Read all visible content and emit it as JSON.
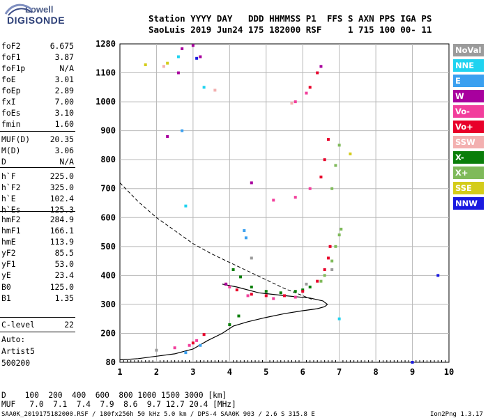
{
  "logo": {
    "line1": "Lowell",
    "line2": "DIGISONDE"
  },
  "header": {
    "line1": "Station YYYY DAY   DDD HHMMSS P1  FFS S AXN PPS IGA PS",
    "line2": "SaoLuis 2019 Jun24 175 182000 RSF     1 715 100 00- 11"
  },
  "params": [
    {
      "name": "foF2",
      "value": "6.675"
    },
    {
      "name": "foF1",
      "value": "3.87"
    },
    {
      "name": "foF1p",
      "value": "N/A"
    },
    {
      "name": "foE",
      "value": "3.01"
    },
    {
      "name": "foEp",
      "value": "2.89"
    },
    {
      "name": "fxI",
      "value": "7.00"
    },
    {
      "name": "foEs",
      "value": "3.10"
    },
    {
      "name": "fmin",
      "value": "1.60"
    },
    {
      "name": "MUF(D)",
      "value": "20.35"
    },
    {
      "name": "M(D)",
      "value": "3.06"
    },
    {
      "name": "D",
      "value": "N/A"
    },
    {
      "name": "h`F",
      "value": "225.0"
    },
    {
      "name": "h`F2",
      "value": "325.0"
    },
    {
      "name": "h`E",
      "value": "102.4"
    },
    {
      "name": "h`Es",
      "value": "125.3"
    },
    {
      "name": "hmF2",
      "value": "284.9"
    },
    {
      "name": "hmF1",
      "value": "166.1"
    },
    {
      "name": "hmE",
      "value": "113.9"
    },
    {
      "name": "yF2",
      "value": "85.5"
    },
    {
      "name": "yF1",
      "value": "53.0"
    },
    {
      "name": "yE",
      "value": "23.4"
    },
    {
      "name": "B0",
      "value": "125.0"
    },
    {
      "name": "B1",
      "value": "1.35"
    },
    {
      "name": "C-level",
      "value": "22"
    }
  ],
  "autoscale": {
    "line1": "Auto:",
    "line2": "Artist5",
    "line3": "500200"
  },
  "legend": [
    {
      "label": "NoVal",
      "color": "#9b9b9b"
    },
    {
      "label": "NNE",
      "color": "#1fd3f0"
    },
    {
      "label": "E",
      "color": "#3aa0f0"
    },
    {
      "label": "W",
      "color": "#a8009e"
    },
    {
      "label": "Vo-",
      "color": "#f23e9c"
    },
    {
      "label": "Vo+",
      "color": "#e8002a"
    },
    {
      "label": "SSW",
      "color": "#f3b0b0"
    },
    {
      "label": "X-",
      "color": "#0a7e0a"
    },
    {
      "label": "X+",
      "color": "#7fba5a"
    },
    {
      "label": "SSE",
      "color": "#d4cc1a"
    },
    {
      "label": "NNW",
      "color": "#1a1ae0"
    }
  ],
  "footer": {
    "d_row": "D    100  200  400  600  800 1000 1500 3000 [km]",
    "muf_row": "MUF   7.0  7.1  7.4  7.9  8.6  9.7 12.7 20.4 [MHz]",
    "file_line": "SAA0K_2019175182000.RSF / 180fx256h 50 kHz 5.0 km / DPS-4 SAA0K 903 / 2.6 S 315.8 E",
    "version": "Ion2Png 1.3.17"
  },
  "chart_data": {
    "type": "scatter",
    "title": "",
    "xlabel": "",
    "ylabel": "",
    "x_ticks": [
      "1",
      "2",
      "3",
      "4",
      "5",
      "6",
      "7",
      "8",
      "9",
      "10"
    ],
    "y_ticks": [
      "80",
      "200",
      "300",
      "400",
      "500",
      "600",
      "700",
      "800",
      "900",
      "1000",
      "1100",
      "1280"
    ],
    "xlim": [
      1,
      10
    ],
    "ylim": [
      80,
      1280
    ],
    "grid": true,
    "y_mapping": "piecewise-linear: tick labels equally spaced",
    "series": [
      {
        "name": "X-",
        "color": "#0a7e0a",
        "points": [
          [
            4.1,
            420
          ],
          [
            4.3,
            395
          ],
          [
            4.6,
            360
          ],
          [
            5.0,
            345
          ],
          [
            5.4,
            340
          ],
          [
            5.8,
            345
          ],
          [
            6.0,
            350
          ],
          [
            6.2,
            360
          ],
          [
            4.25,
            260
          ],
          [
            4.0,
            230
          ]
        ]
      },
      {
        "name": "X+",
        "color": "#7fba5a",
        "points": [
          [
            6.6,
            400
          ],
          [
            6.8,
            450
          ],
          [
            6.9,
            500
          ],
          [
            7.0,
            540
          ],
          [
            7.05,
            560
          ],
          [
            6.5,
            380
          ],
          [
            6.8,
            700
          ],
          [
            7.0,
            850
          ],
          [
            6.9,
            780
          ]
        ]
      },
      {
        "name": "Vo+",
        "color": "#e8002a",
        "points": [
          [
            3.9,
            370
          ],
          [
            4.2,
            350
          ],
          [
            4.6,
            335
          ],
          [
            5.0,
            330
          ],
          [
            5.5,
            330
          ],
          [
            6.0,
            345
          ],
          [
            6.4,
            380
          ],
          [
            6.6,
            420
          ],
          [
            6.7,
            460
          ],
          [
            6.75,
            500
          ],
          [
            6.5,
            740
          ],
          [
            6.6,
            800
          ],
          [
            6.7,
            870
          ],
          [
            6.2,
            1050
          ],
          [
            6.4,
            1100
          ],
          [
            3.3,
            195
          ],
          [
            3.0,
            160
          ]
        ]
      },
      {
        "name": "Vo-",
        "color": "#f23e9c",
        "points": [
          [
            4.0,
            360
          ],
          [
            4.5,
            330
          ],
          [
            5.2,
            320
          ],
          [
            5.8,
            325
          ],
          [
            3.1,
            170
          ],
          [
            2.9,
            150
          ],
          [
            2.5,
            140
          ],
          [
            5.2,
            660
          ],
          [
            5.8,
            670
          ],
          [
            6.2,
            700
          ],
          [
            5.8,
            1000
          ],
          [
            6.1,
            1030
          ]
        ]
      },
      {
        "name": "W",
        "color": "#a8009e",
        "points": [
          [
            2.7,
            1250
          ],
          [
            3.0,
            1270
          ],
          [
            3.2,
            1200
          ],
          [
            2.6,
            1100
          ],
          [
            2.3,
            880
          ],
          [
            4.6,
            720
          ],
          [
            6.5,
            1140
          ],
          [
            3.9,
            370
          ]
        ]
      },
      {
        "name": "E",
        "color": "#3aa0f0",
        "points": [
          [
            4.4,
            555
          ],
          [
            4.45,
            530
          ],
          [
            2.8,
            120
          ],
          [
            3.2,
            150
          ],
          [
            2.7,
            900
          ]
        ]
      },
      {
        "name": "NNE",
        "color": "#1fd3f0",
        "points": [
          [
            2.6,
            1200
          ],
          [
            3.3,
            1050
          ],
          [
            2.8,
            640
          ],
          [
            7.0,
            250
          ]
        ]
      },
      {
        "name": "NoVal",
        "color": "#9b9b9b",
        "points": [
          [
            4.6,
            460
          ],
          [
            6.1,
            370
          ],
          [
            2.0,
            130
          ],
          [
            6.8,
            420
          ]
        ]
      },
      {
        "name": "SSW",
        "color": "#f3b0b0",
        "points": [
          [
            3.6,
            1040
          ],
          [
            5.7,
            995
          ],
          [
            2.2,
            1140
          ]
        ]
      },
      {
        "name": "SSE",
        "color": "#d4cc1a",
        "points": [
          [
            1.7,
            1150
          ],
          [
            7.3,
            820
          ],
          [
            2.3,
            1160
          ]
        ]
      },
      {
        "name": "NNW",
        "color": "#1a1ae0",
        "points": [
          [
            9.0,
            80
          ],
          [
            9.7,
            400
          ],
          [
            3.1,
            1190
          ]
        ]
      }
    ],
    "profile_curve": [
      [
        1.0,
        90
      ],
      [
        1.5,
        95
      ],
      [
        2.0,
        105
      ],
      [
        2.5,
        115
      ],
      [
        3.0,
        135
      ],
      [
        3.4,
        170
      ],
      [
        3.8,
        200
      ],
      [
        4.1,
        225
      ],
      [
        4.5,
        240
      ],
      [
        5.0,
        255
      ],
      [
        5.5,
        268
      ],
      [
        6.0,
        278
      ],
      [
        6.4,
        285
      ],
      [
        6.6,
        292
      ],
      [
        6.675,
        300
      ],
      [
        6.55,
        312
      ],
      [
        6.2,
        322
      ],
      [
        5.5,
        330
      ],
      [
        4.8,
        340
      ],
      [
        4.2,
        360
      ],
      [
        3.8,
        370
      ]
    ],
    "virtual_trace": [
      [
        1.0,
        720
      ],
      [
        1.5,
        655
      ],
      [
        2.0,
        600
      ],
      [
        2.5,
        555
      ],
      [
        3.0,
        510
      ],
      [
        3.5,
        475
      ],
      [
        4.0,
        445
      ],
      [
        4.5,
        415
      ],
      [
        5.0,
        385
      ],
      [
        5.5,
        355
      ],
      [
        6.0,
        330
      ],
      [
        6.3,
        315
      ]
    ]
  }
}
